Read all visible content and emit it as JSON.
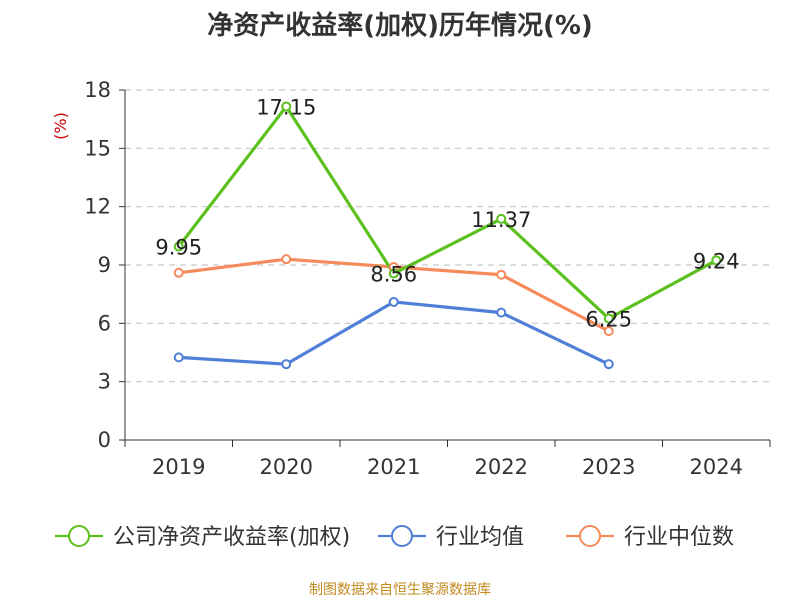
{
  "chart_data": {
    "type": "line",
    "title": "净资产收益率(加权)历年情况(%)",
    "ylabel": "(%)",
    "xlabel": "",
    "categories": [
      "2019",
      "2020",
      "2021",
      "2022",
      "2023",
      "2024"
    ],
    "ylim": [
      0,
      18
    ],
    "yticks": [
      0,
      3,
      6,
      9,
      12,
      15,
      18
    ],
    "grid": true,
    "legend_position": "bottom",
    "series": [
      {
        "name": "公司净资产收益率(加权)",
        "color": "#5cc11f",
        "values": [
          9.95,
          17.15,
          8.56,
          11.37,
          6.25,
          9.24
        ],
        "labels": [
          "9.95",
          "17.15",
          "8.56",
          "11.37",
          "6.25",
          "9.24"
        ]
      },
      {
        "name": "行业均值",
        "color": "#4f7fd6",
        "values": [
          4.25,
          3.9,
          7.1,
          6.55,
          3.9,
          null
        ]
      },
      {
        "name": "行业中位数",
        "color": "#f58b5b",
        "values": [
          8.6,
          9.3,
          8.9,
          8.5,
          5.6,
          null
        ]
      }
    ]
  },
  "source": "制图数据来自恒生聚源数据库"
}
